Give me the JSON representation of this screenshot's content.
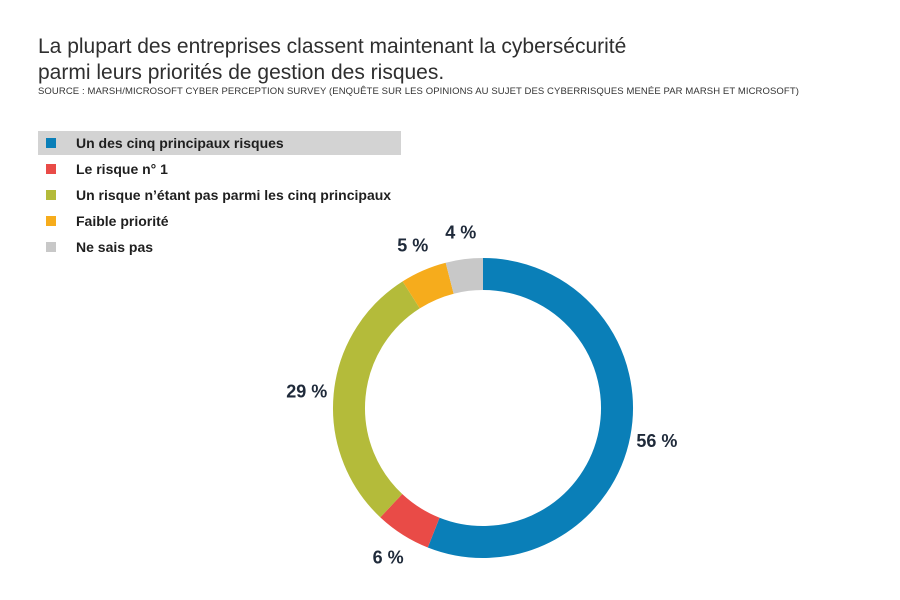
{
  "header": {
    "title": "La plupart des entreprises classent maintenant la cybersécurité parmi leurs priorités de gestion des risques.",
    "source": "SOURCE : MARSH/MICROSOFT CYBER PERCEPTION SURVEY (ENQUÊTE SUR LES OPINIONS AU SUJET DES CYBERRISQUES MENÉE PAR MARSH ET MICROSOFT)"
  },
  "chart_data": {
    "type": "pie",
    "subtype": "donut",
    "legend_position": "top-left",
    "categories": [
      "Un des cinq principaux risques",
      "Le risque n° 1",
      "Un risque n’étant pas parmi les cinq principaux",
      "Faible priorité",
      "Ne sais pas"
    ],
    "values": [
      56,
      6,
      29,
      5,
      4
    ],
    "labels": [
      "56 %",
      "6 %",
      "29 %",
      "5 %",
      "4 %"
    ],
    "colors": [
      "#0a7fb8",
      "#e94b47",
      "#b4bb3a",
      "#f6ac1c",
      "#c8c8c8"
    ],
    "label_colors": [
      "#1f2a3a",
      "#1f2a3a",
      "#1f2a3a",
      "#1f2a3a",
      "#9a9a9a"
    ],
    "highlighted_legend_index": 0
  }
}
